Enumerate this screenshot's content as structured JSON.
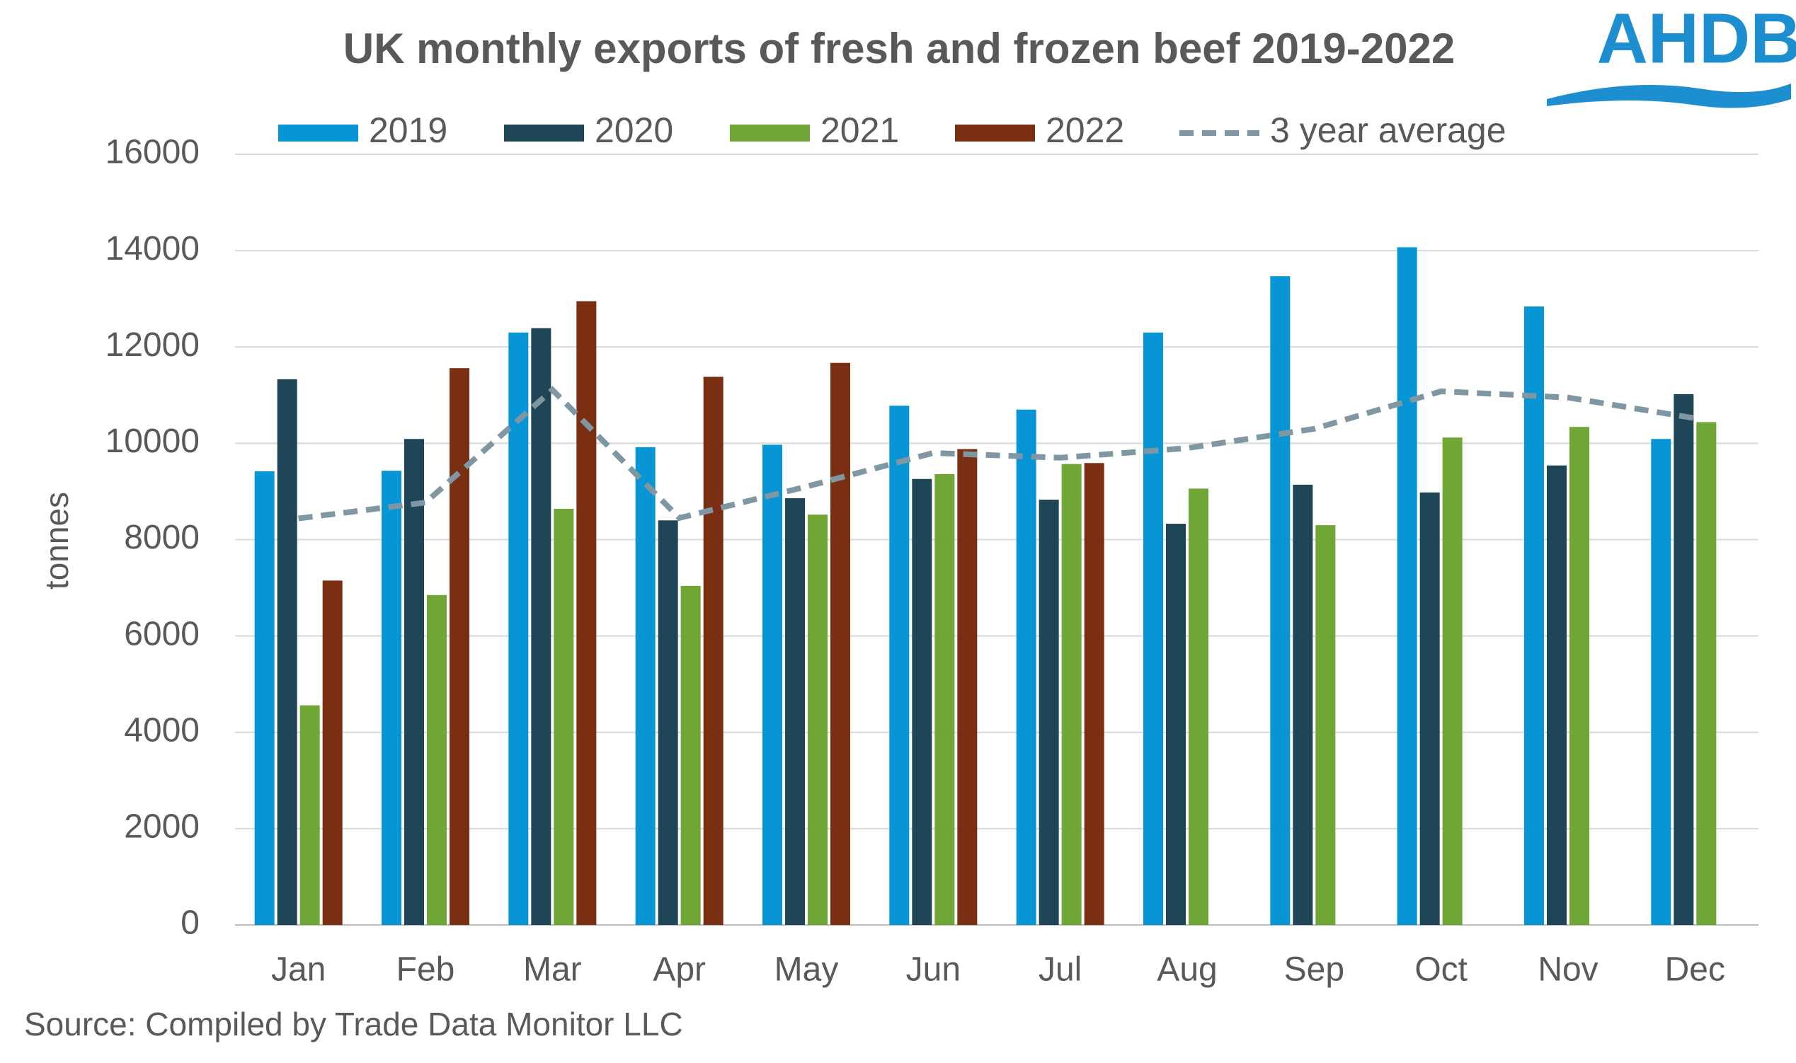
{
  "chart_data": {
    "type": "bar",
    "title": "UK monthly exports of fresh and frozen beef 2019-2022",
    "logo": "AHDB",
    "y_label": "tonnes",
    "source": "Source: Compiled by Trade Data Monitor LLC",
    "categories": [
      "Jan",
      "Feb",
      "Mar",
      "Apr",
      "May",
      "Jun",
      "Jul",
      "Aug",
      "Sep",
      "Oct",
      "Nov",
      "Dec"
    ],
    "series": [
      {
        "name": "2019",
        "color": "#0795d5",
        "values": [
          9420,
          9430,
          12300,
          9920,
          9970,
          10780,
          10700,
          12300,
          13470,
          14070,
          12840,
          10090
        ]
      },
      {
        "name": "2020",
        "color": "#1f4656",
        "values": [
          11330,
          10090,
          12390,
          8400,
          8860,
          9260,
          8830,
          8330,
          9140,
          8980,
          9540,
          11020
        ]
      },
      {
        "name": "2021",
        "color": "#6fa636",
        "values": [
          4560,
          6850,
          8640,
          7040,
          8520,
          9360,
          9570,
          9060,
          8300,
          10120,
          10340,
          10440
        ]
      },
      {
        "name": "2022",
        "color": "#7a2f12",
        "values": [
          7150,
          11560,
          12950,
          11380,
          11670,
          9880,
          9590,
          null,
          null,
          null,
          null,
          null
        ]
      },
      {
        "name": "3 year average",
        "type": "line",
        "dashed": true,
        "color": "#7f97a2",
        "values": [
          8440,
          8770,
          11110,
          8450,
          9100,
          9800,
          9700,
          9900,
          10300,
          11080,
          10950,
          10520
        ]
      }
    ],
    "ylim": [
      0,
      16000
    ],
    "yticks": [
      0,
      2000,
      4000,
      6000,
      8000,
      10000,
      12000,
      14000,
      16000
    ],
    "grid": true
  }
}
